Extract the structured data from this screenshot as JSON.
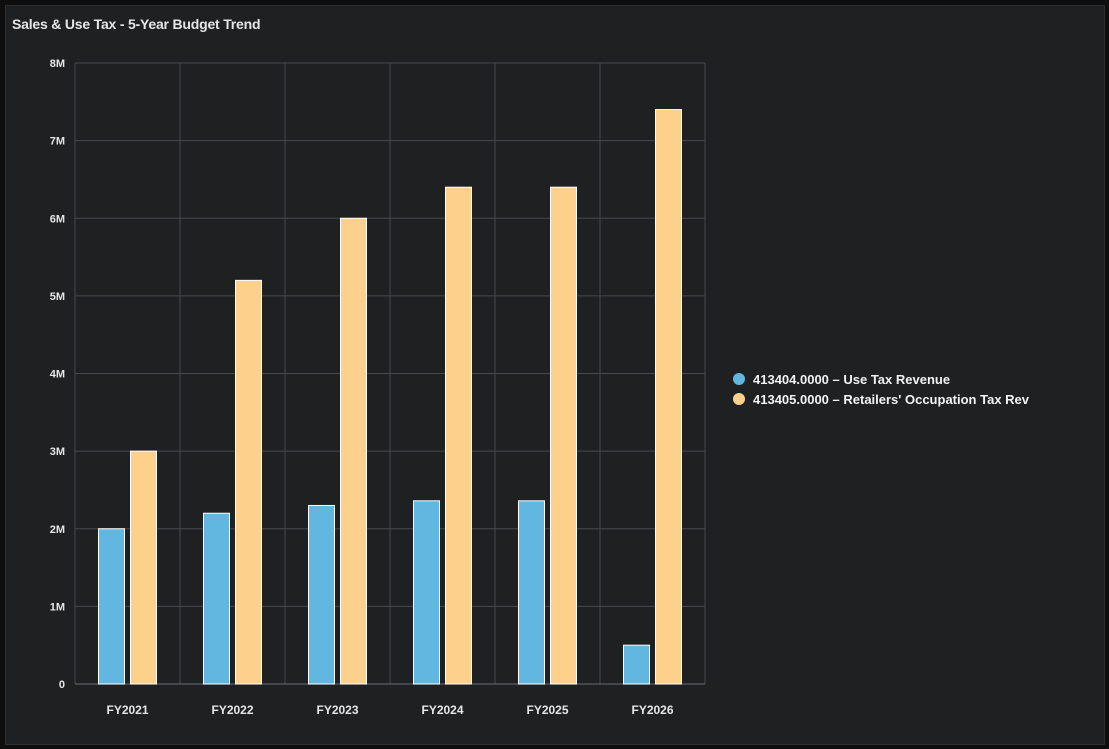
{
  "panel": {
    "title": "Sales & Use Tax - 5-Year Budget Trend"
  },
  "colors": {
    "background": "#1f2022",
    "grid": "#47494d",
    "axis_text": "#e6e6e6",
    "series_1": "#62b7e0",
    "series_2": "#fdd18b"
  },
  "chart_data": {
    "type": "bar",
    "title": "Sales & Use Tax - 5-Year Budget Trend",
    "xlabel": "",
    "ylabel": "",
    "categories": [
      "FY2021",
      "FY2022",
      "FY2023",
      "FY2024",
      "FY2025",
      "FY2026"
    ],
    "series": [
      {
        "name": "413404.0000 – Use Tax Revenue",
        "color": "#62b7e0",
        "values": [
          2000000,
          2200000,
          2300000,
          2360000,
          2360000,
          500000
        ]
      },
      {
        "name": "413405.0000 – Retailers' Occupation Tax Rev",
        "color": "#fdd18b",
        "values": [
          3000000,
          5200000,
          6000000,
          6400000,
          6400000,
          7400000
        ]
      }
    ],
    "ylim": [
      0,
      8000000
    ],
    "yticks": [
      0,
      1000000,
      2000000,
      3000000,
      4000000,
      5000000,
      6000000,
      7000000,
      8000000
    ],
    "ytick_labels": [
      "0",
      "1M",
      "2M",
      "3M",
      "4M",
      "5M",
      "6M",
      "7M",
      "8M"
    ],
    "grid": true,
    "legend_position": "right"
  }
}
